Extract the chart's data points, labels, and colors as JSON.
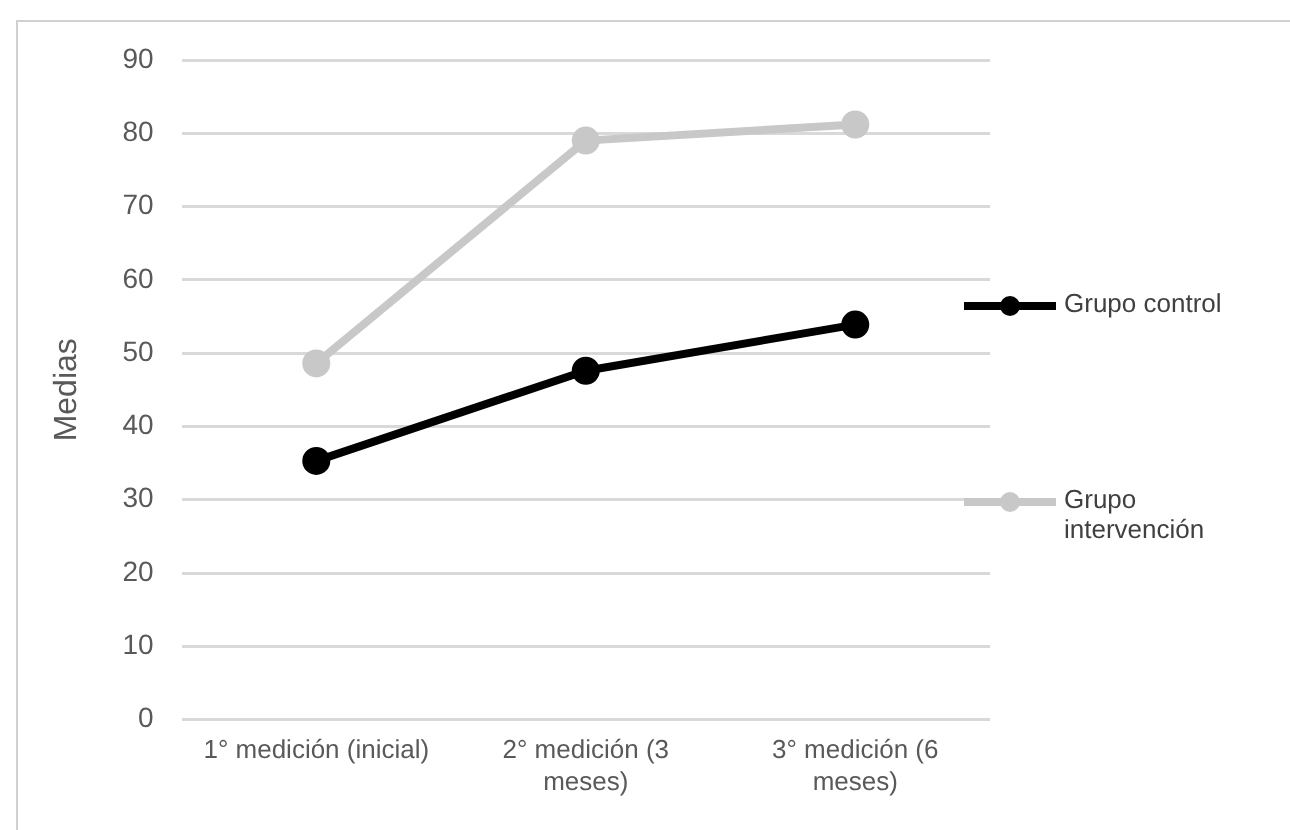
{
  "chart_data": {
    "type": "line",
    "ylabel": "Medias",
    "categories": [
      "1° medición (inicial)",
      "2° medición (3 meses)",
      "3° medición (6 meses)"
    ],
    "series": [
      {
        "name": "Grupo control",
        "color": "#000000",
        "values": [
          35.3,
          47.6,
          53.9
        ]
      },
      {
        "name": "Grupo intervención",
        "color": "#c8c8c8",
        "values": [
          48.6,
          79,
          81.2
        ]
      }
    ],
    "ylim": [
      0,
      90
    ],
    "yticks": [
      0,
      10,
      20,
      30,
      40,
      50,
      60,
      70,
      80,
      90
    ],
    "grid": "y",
    "legend": "right",
    "marker": "circle",
    "line_style": "solid"
  }
}
